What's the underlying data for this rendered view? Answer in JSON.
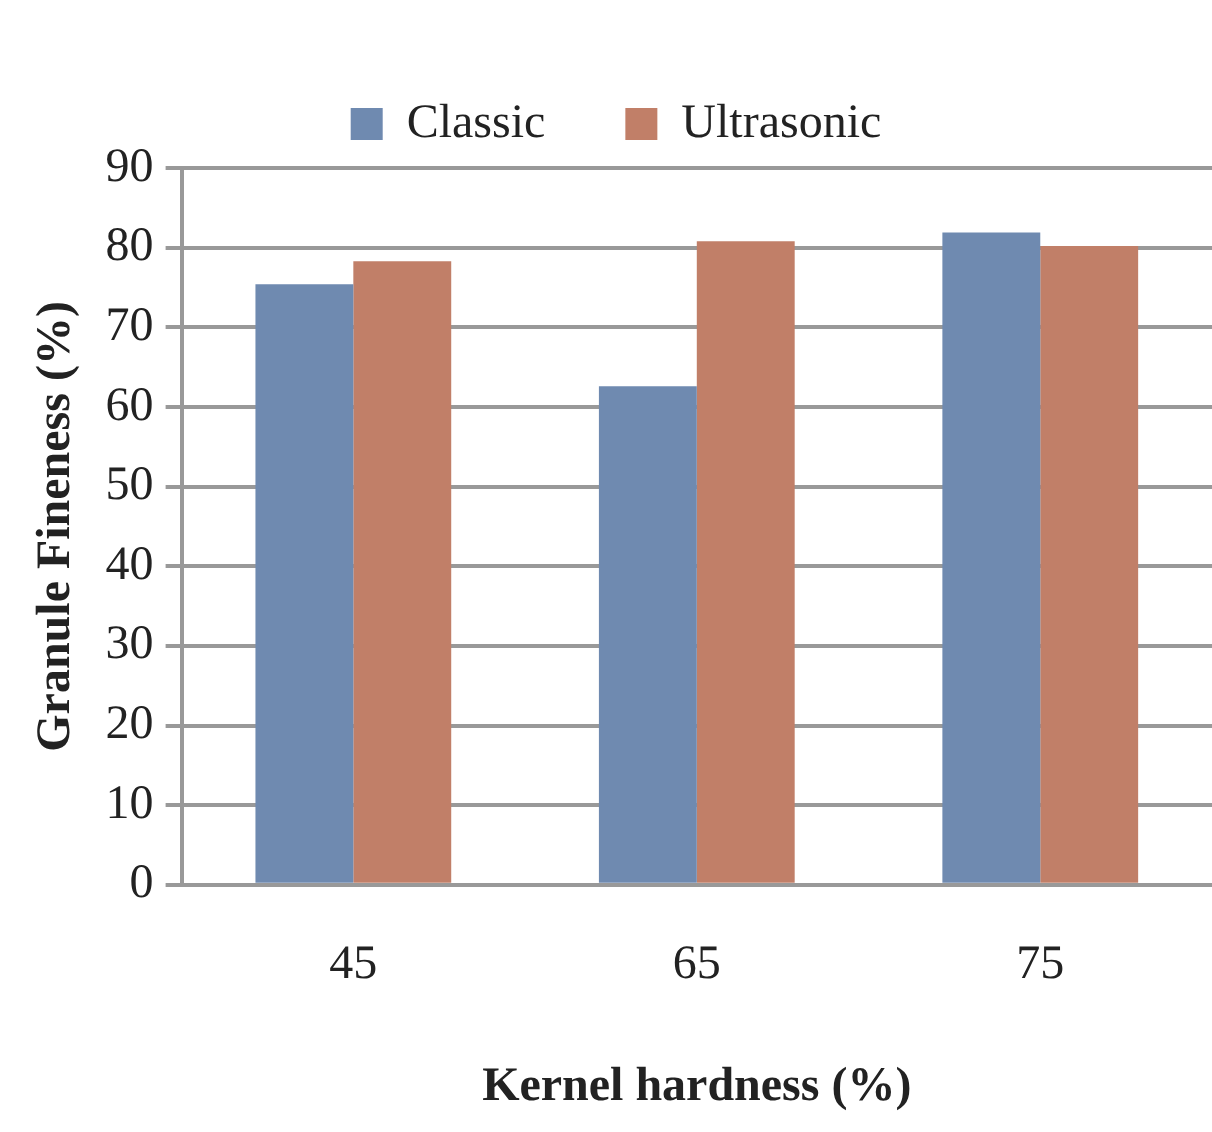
{
  "chart_data": {
    "type": "bar",
    "xlabel": "Kernel hardness (%)",
    "ylabel": "Granule Fineness (%)",
    "categories": [
      "45",
      "65",
      "75"
    ],
    "series": [
      {
        "name": "Classic",
        "color": "#6f8ab0",
        "values": [
          75.4,
          62.6,
          81.9
        ]
      },
      {
        "name": "Ultrasonic",
        "color": "#c17f68",
        "values": [
          78.3,
          80.8,
          80.2
        ]
      }
    ],
    "ylim": [
      0,
      90
    ],
    "yticks": [
      0,
      10,
      20,
      30,
      40,
      50,
      60,
      70,
      80,
      90
    ],
    "grid": "y",
    "legend": "top"
  }
}
